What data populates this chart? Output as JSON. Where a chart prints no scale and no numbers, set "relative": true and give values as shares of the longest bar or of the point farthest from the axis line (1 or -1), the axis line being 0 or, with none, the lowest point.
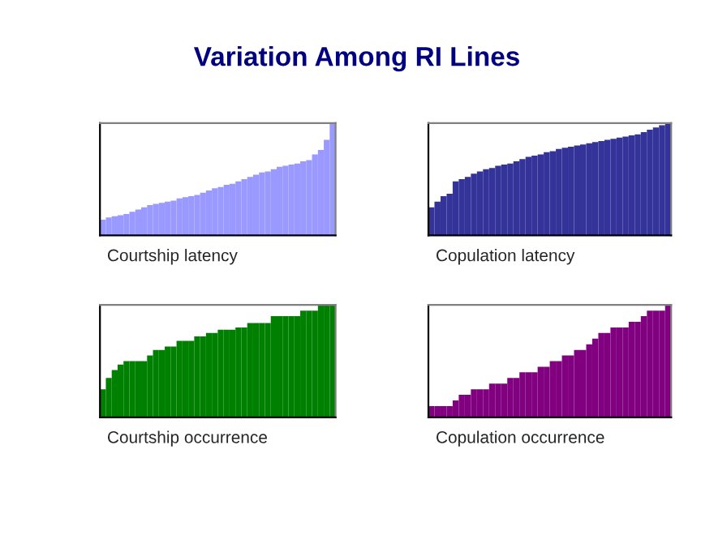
{
  "chart_data": [
    {
      "type": "bar",
      "title": "Variation Among RI Lines",
      "xlabel": "Courtship latency",
      "relative": true,
      "color": "#9999ff",
      "categories": [
        null,
        null,
        null,
        null,
        null,
        null,
        null,
        null,
        null,
        null,
        null,
        null,
        null,
        null,
        null,
        null,
        null,
        null,
        null,
        null,
        null,
        null,
        null,
        null,
        null,
        null,
        null,
        null,
        null,
        null,
        null,
        null,
        null,
        null,
        null,
        null,
        null,
        null,
        null,
        null
      ],
      "values": [
        0.14,
        0.16,
        0.17,
        0.18,
        0.19,
        0.21,
        0.23,
        0.25,
        0.27,
        0.28,
        0.29,
        0.3,
        0.31,
        0.33,
        0.34,
        0.35,
        0.36,
        0.38,
        0.4,
        0.42,
        0.43,
        0.45,
        0.46,
        0.48,
        0.5,
        0.52,
        0.54,
        0.56,
        0.57,
        0.59,
        0.61,
        0.62,
        0.63,
        0.64,
        0.66,
        0.67,
        0.72,
        0.76,
        0.85,
        1.0
      ]
    },
    {
      "type": "bar",
      "xlabel": "Copulation latency",
      "relative": true,
      "color": "#333399",
      "categories": [
        null,
        null,
        null,
        null,
        null,
        null,
        null,
        null,
        null,
        null,
        null,
        null,
        null,
        null,
        null,
        null,
        null,
        null,
        null,
        null,
        null,
        null,
        null,
        null,
        null,
        null,
        null,
        null,
        null,
        null,
        null,
        null,
        null,
        null,
        null,
        null,
        null,
        null,
        null,
        null
      ],
      "values": [
        0.25,
        0.3,
        0.35,
        0.37,
        0.48,
        0.5,
        0.52,
        0.55,
        0.57,
        0.59,
        0.6,
        0.62,
        0.63,
        0.64,
        0.66,
        0.68,
        0.7,
        0.71,
        0.72,
        0.74,
        0.75,
        0.77,
        0.78,
        0.79,
        0.8,
        0.81,
        0.82,
        0.83,
        0.84,
        0.85,
        0.86,
        0.87,
        0.88,
        0.89,
        0.9,
        0.92,
        0.94,
        0.96,
        0.98,
        1.0
      ]
    },
    {
      "type": "bar",
      "xlabel": "Courtship occurrence",
      "relative": true,
      "color": "#008000",
      "categories": [
        null,
        null,
        null,
        null,
        null,
        null,
        null,
        null,
        null,
        null,
        null,
        null,
        null,
        null,
        null,
        null,
        null,
        null,
        null,
        null,
        null,
        null,
        null,
        null,
        null,
        null,
        null,
        null,
        null,
        null,
        null,
        null,
        null,
        null,
        null,
        null,
        null,
        null,
        null,
        null
      ],
      "values": [
        0.25,
        0.35,
        0.42,
        0.47,
        0.5,
        0.5,
        0.5,
        0.5,
        0.55,
        0.6,
        0.6,
        0.63,
        0.63,
        0.68,
        0.68,
        0.68,
        0.72,
        0.72,
        0.75,
        0.75,
        0.78,
        0.78,
        0.78,
        0.8,
        0.8,
        0.84,
        0.84,
        0.84,
        0.84,
        0.9,
        0.9,
        0.9,
        0.9,
        0.9,
        0.95,
        0.95,
        0.95,
        1.0,
        1.0,
        1.0
      ]
    },
    {
      "type": "bar",
      "xlabel": "Copulation occurrence",
      "relative": true,
      "color": "#800080",
      "categories": [
        null,
        null,
        null,
        null,
        null,
        null,
        null,
        null,
        null,
        null,
        null,
        null,
        null,
        null,
        null,
        null,
        null,
        null,
        null,
        null,
        null,
        null,
        null,
        null,
        null,
        null,
        null,
        null,
        null,
        null,
        null,
        null,
        null,
        null,
        null,
        null,
        null,
        null,
        null,
        null
      ],
      "values": [
        0.1,
        0.1,
        0.1,
        0.1,
        0.15,
        0.2,
        0.2,
        0.25,
        0.25,
        0.25,
        0.3,
        0.3,
        0.3,
        0.35,
        0.35,
        0.4,
        0.4,
        0.4,
        0.45,
        0.45,
        0.5,
        0.5,
        0.55,
        0.55,
        0.6,
        0.6,
        0.65,
        0.7,
        0.75,
        0.75,
        0.8,
        0.8,
        0.8,
        0.85,
        0.85,
        0.9,
        0.95,
        0.95,
        0.95,
        1.0
      ]
    }
  ]
}
